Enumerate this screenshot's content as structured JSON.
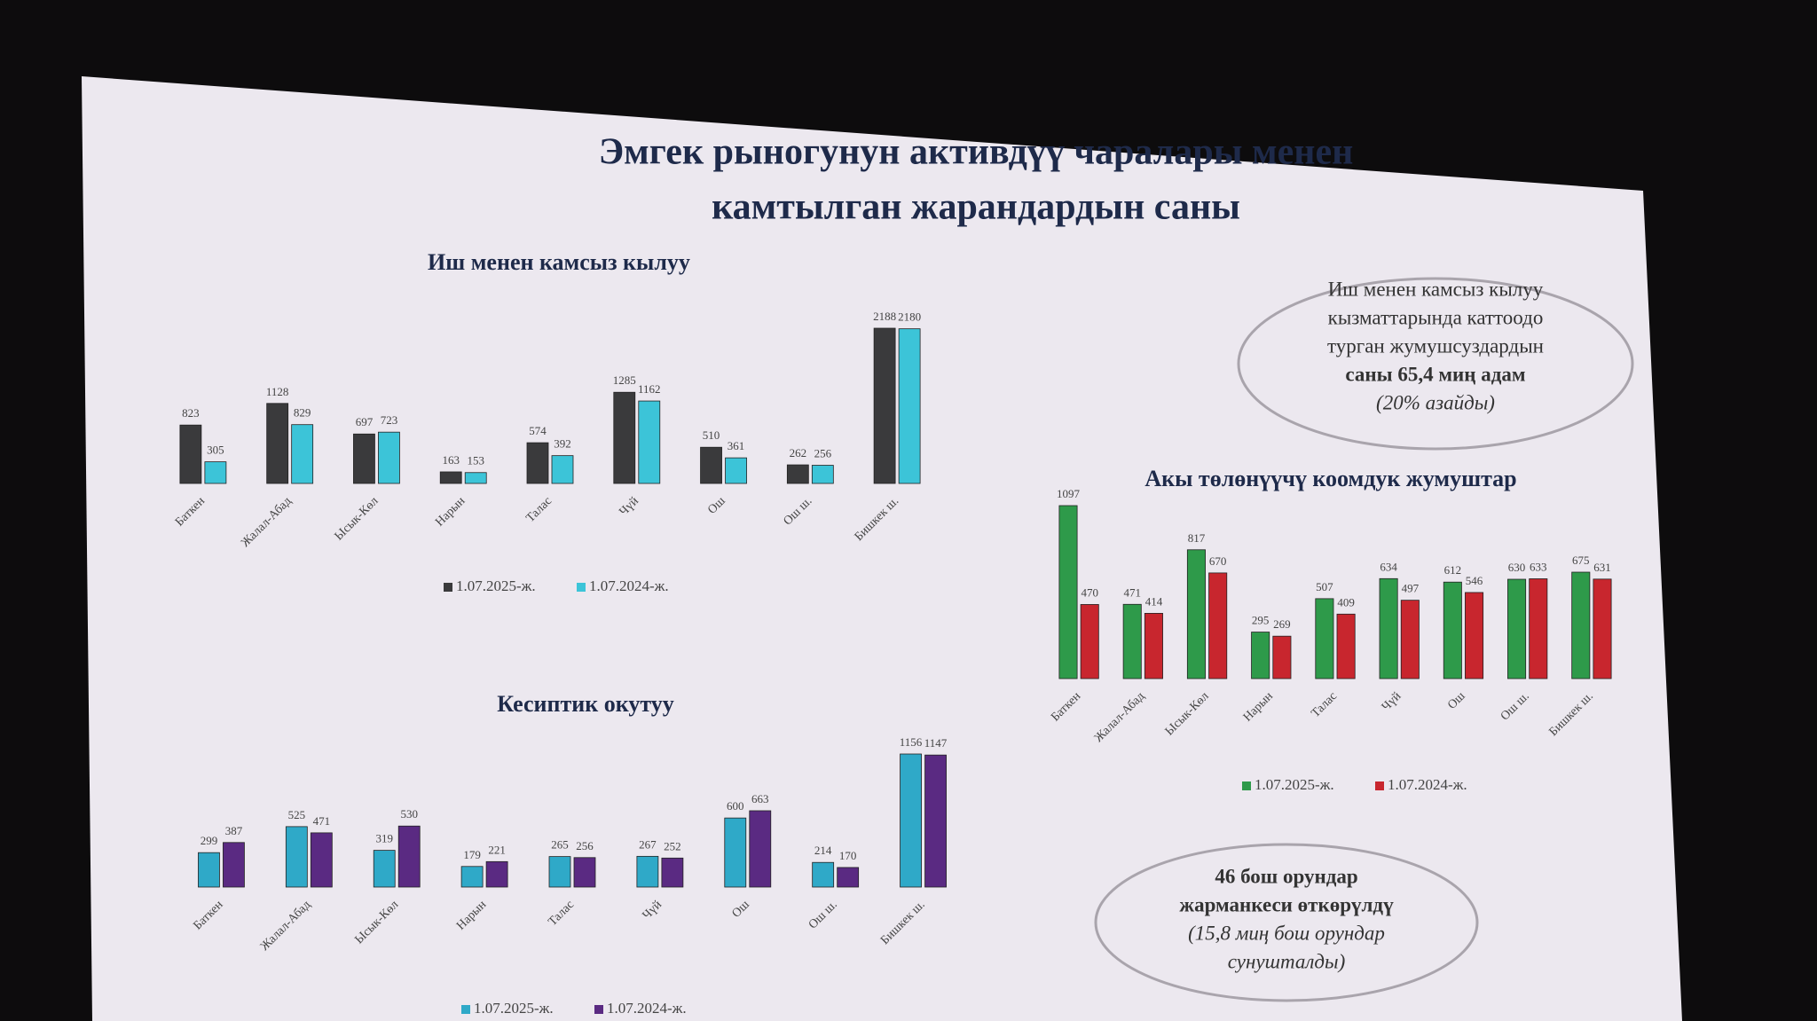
{
  "title": [
    "Эмгек рыногунун активдүү чаралары менен",
    "камтылган жарандардын саны"
  ],
  "notes": [
    {
      "lines": [
        "Иш менен камсыз кылуу",
        "кызматтарында каттоодо",
        "турган жумушсуздардын",
        "саны 65,4 миң адам",
        "(20% азайды)"
      ]
    },
    {
      "lines": [
        "46 бош орундар",
        "жарманкеси өткөрүлдү",
        "(15,8 миң бош орундар",
        "сунушталды)"
      ]
    }
  ],
  "chart_data": [
    {
      "type": "bar",
      "title": "Иш менен камсыз кылуу",
      "categories": [
        "Баткен",
        "Жалал-Абад",
        "Ысык-Көл",
        "Нарын",
        "Талас",
        "Чүй",
        "Ош",
        "Ош ш.",
        "Бишкек ш."
      ],
      "series": [
        {
          "name": "1.07.2025-ж.",
          "color": "#3a3a3c",
          "values": [
            823,
            1128,
            697,
            163,
            574,
            1285,
            510,
            262,
            2188
          ]
        },
        {
          "name": "1.07.2024-ж.",
          "color": "#3cc4d8",
          "values": [
            305,
            829,
            723,
            153,
            392,
            1162,
            361,
            256,
            2180
          ]
        }
      ]
    },
    {
      "type": "bar",
      "title": "Акы төлөнүүчү коомдук жумуштар",
      "categories": [
        "Баткен",
        "Жалал-Абад",
        "Ысык-Көл",
        "Нарын",
        "Талас",
        "Чүй",
        "Ош",
        "Ош ш.",
        "Бишкек ш."
      ],
      "series": [
        {
          "name": "1.07.2025-ж.",
          "color": "#2e9a4a",
          "values": [
            1097,
            471,
            817,
            295,
            507,
            634,
            612,
            630,
            675
          ]
        },
        {
          "name": "1.07.2024-ж.",
          "color": "#c8262e",
          "values": [
            470,
            414,
            670,
            269,
            409,
            497,
            546,
            633,
            631
          ]
        }
      ]
    },
    {
      "type": "bar",
      "title": "Кесиптик окутуу",
      "categories": [
        "Баткен",
        "Жалал-Абад",
        "Ысык-Көл",
        "Нарын",
        "Талас",
        "Чүй",
        "Ош",
        "Ош ш.",
        "Бишкек ш."
      ],
      "series": [
        {
          "name": "1.07.2025-ж.",
          "color": "#2fa9c8",
          "values": [
            299,
            525,
            319,
            179,
            265,
            267,
            600,
            214,
            1156
          ]
        },
        {
          "name": "1.07.2024-ж.",
          "color": "#5a2a82",
          "values": [
            387,
            471,
            530,
            221,
            256,
            252,
            663,
            170,
            1147
          ]
        }
      ]
    }
  ]
}
